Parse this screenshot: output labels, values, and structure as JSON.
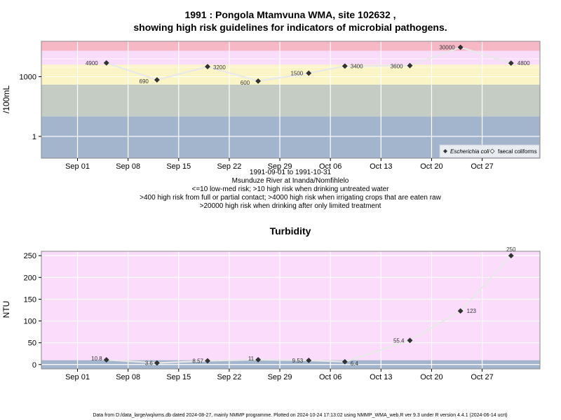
{
  "chart_data": [
    {
      "type": "line",
      "title": "1991 : Pongola Mtamvuna WMA, site 102632 ,",
      "subtitle": "showing high risk guidelines for indicators of microbial pathogens.",
      "xlabel_lines": [
        "1991-09-01 to 1991-10-31",
        "Msunduze River at Inanda/Nomfihlelo",
        "<=10 low-med risk; >10 high risk when drinking untreated water",
        ">400 high risk from full or partial contact; >4000 high risk when irrigating crops that are eaten raw",
        ">20000 high risk when drinking after only limited treatment"
      ],
      "ylabel": "/100mL",
      "y_scale": "log",
      "ylim": [
        0.08,
        60000
      ],
      "xlim": [
        "1991-08-27",
        "1991-11-04"
      ],
      "yticks": [
        1,
        1000
      ],
      "ytick_labels": [
        "1",
        "1000"
      ],
      "xticks": [
        "1991-09-01",
        "1991-09-08",
        "1991-09-15",
        "1991-09-22",
        "1991-09-29",
        "1991-10-06",
        "1991-10-13",
        "1991-10-20",
        "1991-10-27"
      ],
      "xtick_labels": [
        "Sep 01",
        "Sep 08",
        "Sep 15",
        "Sep 22",
        "Sep 29",
        "Oct 06",
        "Oct 13",
        "Oct 20",
        "Oct 27"
      ],
      "bands": [
        {
          "from": 0.08,
          "to": 10,
          "color": "#a3b5cc"
        },
        {
          "from": 10,
          "to": 400,
          "color": "#c4ccc4"
        },
        {
          "from": 400,
          "to": 4000,
          "color": "#fbf4c6"
        },
        {
          "from": 4000,
          "to": 20000,
          "color": "#f9dcf9"
        },
        {
          "from": 20000,
          "to": 60000,
          "color": "#f7b8c6"
        }
      ],
      "grid": true,
      "legend": {
        "placement": "bottom-right",
        "entries": [
          "Escherichia coli",
          "faecal coliforms"
        ]
      },
      "series": [
        {
          "name": "Escherichia coli",
          "color": "#222222",
          "x": [
            "1991-09-05",
            "1991-09-12",
            "1991-09-19",
            "1991-09-26",
            "1991-10-03",
            "1991-10-08",
            "1991-10-17",
            "1991-10-24",
            "1991-10-31"
          ],
          "y": [
            4900,
            690,
            3200,
            600,
            1500,
            3400,
            3600,
            30000,
            4800
          ],
          "labels": [
            "4900",
            "690",
            "3200",
            "600",
            "1500",
            "3400",
            "3600",
            "30000",
            "4800"
          ]
        }
      ]
    },
    {
      "type": "line",
      "title": "Turbidity",
      "ylabel": "NTU",
      "ylim": [
        -10,
        260
      ],
      "xlim": [
        "1991-08-27",
        "1991-11-04"
      ],
      "yticks": [
        0,
        50,
        100,
        150,
        200,
        250
      ],
      "ytick_labels": [
        "0",
        "50",
        "100",
        "150",
        "200",
        "250"
      ],
      "xticks": [
        "1991-09-01",
        "1991-09-08",
        "1991-09-15",
        "1991-09-22",
        "1991-09-29",
        "1991-10-06",
        "1991-10-13",
        "1991-10-20",
        "1991-10-27"
      ],
      "xtick_labels": [
        "Sep 01",
        "Sep 08",
        "Sep 15",
        "Sep 22",
        "Sep 29",
        "Oct 06",
        "Oct 13",
        "Oct 20",
        "Oct 27"
      ],
      "bands": [
        {
          "from": -10,
          "to": 10,
          "color": "#a3b5cc"
        },
        {
          "from": 10,
          "to": 260,
          "color": "#fbdcfb"
        }
      ],
      "grid": true,
      "series": [
        {
          "color": "#222222",
          "x": [
            "1991-09-05",
            "1991-09-12",
            "1991-09-19",
            "1991-09-26",
            "1991-10-03",
            "1991-10-08",
            "1991-10-17",
            "1991-10-24",
            "1991-10-31"
          ],
          "y": [
            10.8,
            3.6,
            8.57,
            11,
            9.53,
            6.4,
            55.4,
            123,
            250
          ],
          "labels": [
            "10.8",
            "3.6",
            "8.57",
            "11",
            "9.53",
            "6.4",
            "55.4",
            "123",
            "250"
          ]
        }
      ]
    }
  ],
  "footer": "Data from D:/data_large/wq/wms.db dated 2024-08-27, mainly NMMP programme. Plotted on 2024-10-24 17:13:02 using NMMP_WMA_web.R ver 9.3 under R version 4.4.1 (2024-06-14 ucrt)"
}
